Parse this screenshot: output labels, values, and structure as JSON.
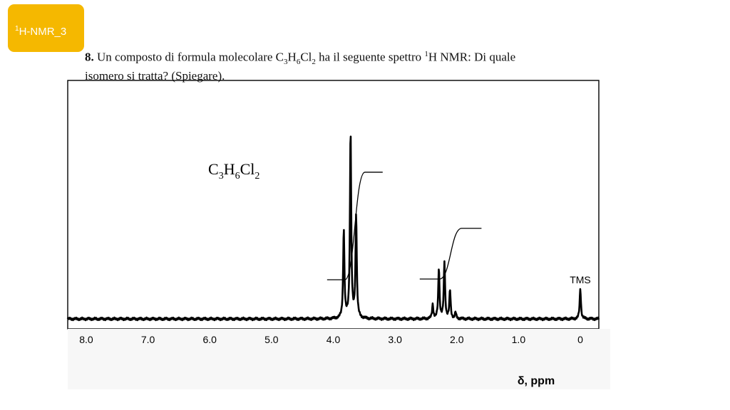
{
  "badge": {
    "sup": "1",
    "label": "H-NMR_3"
  },
  "question": {
    "number": "8.",
    "part1": " Un composto di formula molecolare C",
    "s1": "3",
    "h": "H",
    "s2": "6",
    "cl": "Cl",
    "s3": "2",
    "part2": " ha il seguente spettro ",
    "sup": "1",
    "part3": "H NMR: Di quale",
    "line2": "isomero si tratta? (Spiegare)."
  },
  "formula": {
    "c": "C",
    "c_n": "3",
    "h": "H",
    "h_n": "6",
    "cl": "Cl",
    "cl_n": "2"
  },
  "chart_data": {
    "type": "line",
    "xlabel": "δ, ppm",
    "xlim": [
      8.3,
      -0.3
    ],
    "x_ticks": [
      "8.0",
      "7.0",
      "6.0",
      "5.0",
      "4.0",
      "3.0",
      "2.0",
      "1.0",
      "0"
    ],
    "x_tick_values": [
      8.0,
      7.0,
      6.0,
      5.0,
      4.0,
      3.0,
      2.0,
      1.0,
      0
    ],
    "annotations": [
      {
        "text": "TMS",
        "x": 0.0
      }
    ],
    "peaks": [
      {
        "x": 3.83,
        "h": 0.44
      },
      {
        "x": 3.72,
        "h": 0.93
      },
      {
        "x": 3.63,
        "h": 0.51
      },
      {
        "x": 2.39,
        "h": 0.07
      },
      {
        "x": 2.29,
        "h": 0.25
      },
      {
        "x": 2.2,
        "h": 0.28
      },
      {
        "x": 2.11,
        "h": 0.14
      },
      {
        "x": 2.02,
        "h": 0.03
      },
      {
        "x": 0.0,
        "h": 0.15
      }
    ],
    "integrals": [
      {
        "from": 4.1,
        "to": 3.2,
        "step": 0.53
      },
      {
        "from": 2.6,
        "to": 1.6,
        "step": 0.25
      }
    ]
  }
}
